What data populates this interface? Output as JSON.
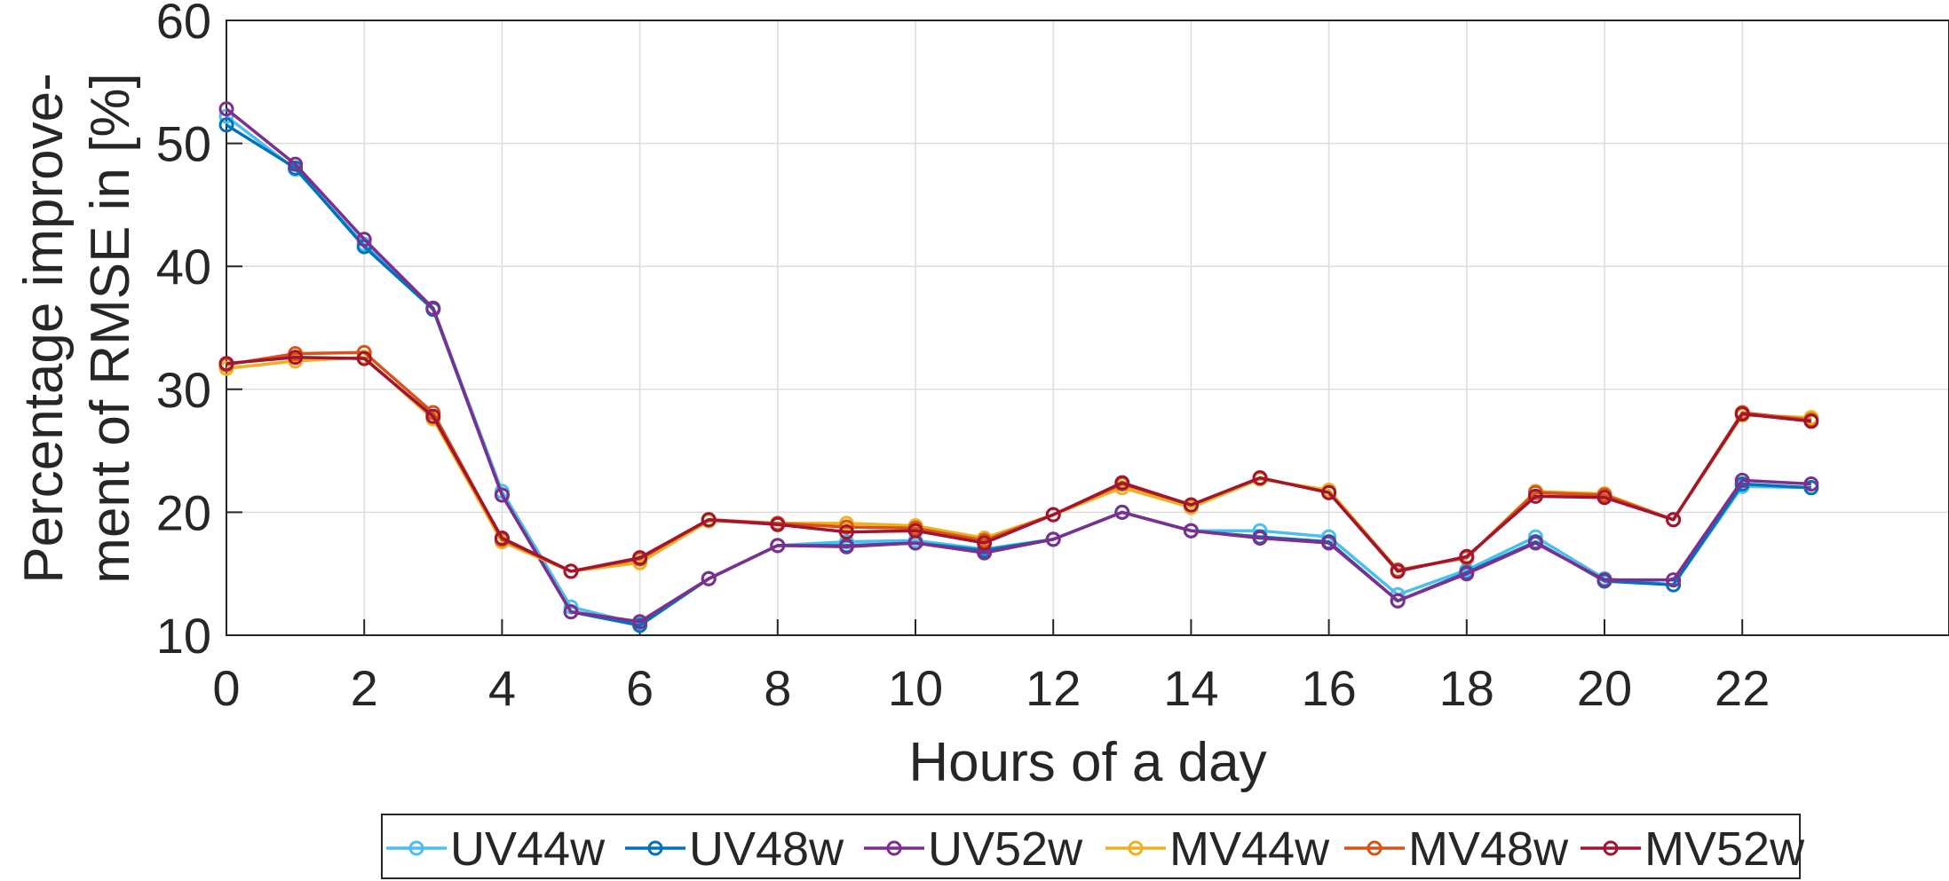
{
  "chart_data": {
    "type": "line",
    "title": "",
    "xlabel": "Hours of a day",
    "ylabel_lines": [
      "Percentage improve-",
      "ment of RMSE in [%]"
    ],
    "xlim": [
      0,
      25
    ],
    "ylim": [
      10,
      60
    ],
    "xticks": [
      0,
      2,
      4,
      6,
      8,
      10,
      12,
      14,
      16,
      18,
      20,
      22
    ],
    "yticks": [
      10,
      20,
      30,
      40,
      50,
      60
    ],
    "xtick_labels": [
      "0",
      "2",
      "4",
      "6",
      "8",
      "10",
      "12",
      "14",
      "16",
      "18",
      "20",
      "22"
    ],
    "ytick_labels": [
      "10",
      "20",
      "30",
      "40",
      "50",
      "60"
    ],
    "grid": true,
    "legend_position": "bottom-center",
    "x": [
      0,
      1,
      2,
      3,
      4,
      5,
      6,
      7,
      8,
      9,
      10,
      11,
      12,
      13,
      14,
      15,
      16,
      17,
      18,
      19,
      20,
      21,
      22,
      23
    ],
    "series": [
      {
        "name": "UV44w",
        "color": "#4DBEEE",
        "values": [
          52.2,
          47.9,
          41.8,
          36.6,
          21.7,
          12.3,
          10.9,
          14.6,
          17.3,
          17.6,
          17.7,
          17.0,
          17.8,
          20.0,
          18.5,
          18.5,
          18.0,
          13.3,
          15.3,
          18.0,
          14.6,
          14.1,
          22.1,
          22.0
        ]
      },
      {
        "name": "UV48w",
        "color": "#0072BD",
        "values": [
          51.5,
          48.0,
          41.6,
          36.5,
          21.4,
          11.9,
          10.8,
          14.6,
          17.3,
          17.3,
          17.5,
          16.9,
          17.8,
          20.0,
          18.5,
          18.0,
          17.6,
          12.8,
          15.1,
          17.6,
          14.4,
          14.1,
          22.3,
          22.0
        ]
      },
      {
        "name": "UV52w",
        "color": "#7E2F8E",
        "values": [
          52.8,
          48.3,
          42.2,
          36.6,
          21.4,
          11.9,
          11.1,
          14.6,
          17.3,
          17.2,
          17.5,
          16.7,
          17.8,
          20.0,
          18.5,
          17.9,
          17.5,
          12.8,
          15.0,
          17.5,
          14.5,
          14.5,
          22.6,
          22.3
        ]
      },
      {
        "name": "MV44w",
        "color": "#EDB120",
        "values": [
          31.7,
          32.3,
          32.6,
          27.6,
          17.6,
          15.2,
          15.9,
          19.3,
          19.1,
          19.1,
          18.9,
          17.9,
          19.8,
          22.0,
          20.4,
          22.7,
          21.8,
          15.3,
          16.3,
          21.7,
          21.5,
          19.4,
          27.9,
          27.7
        ]
      },
      {
        "name": "MV48w",
        "color": "#D95319",
        "values": [
          32.0,
          32.9,
          33.0,
          28.1,
          17.8,
          15.2,
          16.2,
          19.4,
          19.1,
          18.8,
          18.7,
          17.7,
          19.8,
          22.3,
          20.6,
          22.8,
          21.6,
          15.3,
          16.3,
          21.6,
          21.4,
          19.4,
          28.1,
          27.5
        ]
      },
      {
        "name": "MV52w",
        "color": "#A2142F",
        "values": [
          32.1,
          32.6,
          32.5,
          27.8,
          17.9,
          15.2,
          16.3,
          19.4,
          19.0,
          18.4,
          18.5,
          17.5,
          19.8,
          22.4,
          20.6,
          22.8,
          21.6,
          15.2,
          16.4,
          21.3,
          21.2,
          19.4,
          28.0,
          27.4
        ]
      }
    ]
  }
}
